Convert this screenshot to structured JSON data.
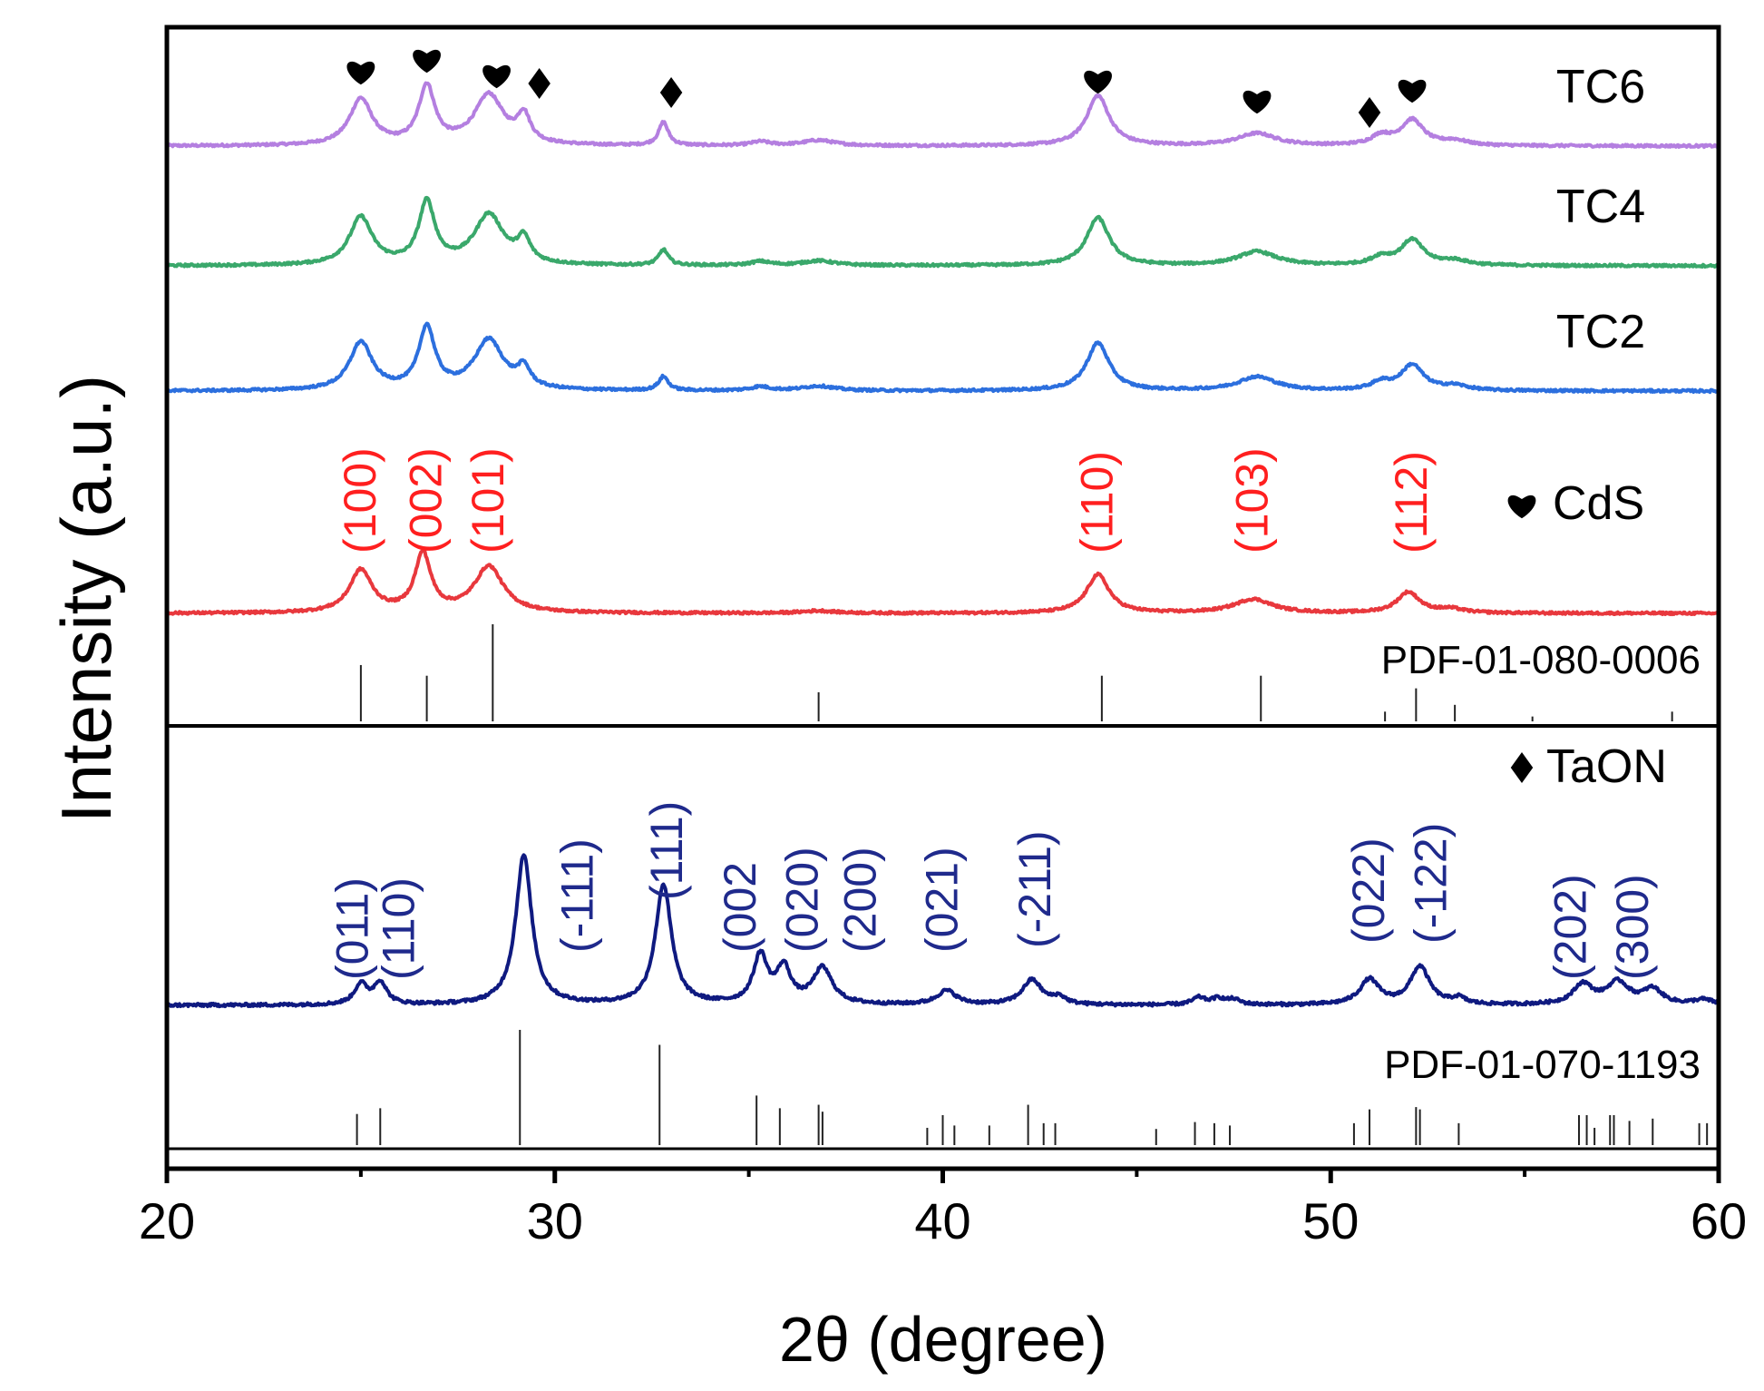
{
  "chart_data": {
    "type": "line",
    "xlabel": "2θ (degree)",
    "ylabel": "Intensity (a.u.)",
    "xlim": [
      20,
      60
    ],
    "xticks": [
      20,
      30,
      40,
      50,
      60
    ],
    "colors": {
      "TC6": "#b47fe0",
      "TC4": "#3aa86b",
      "TC2": "#2c6fde",
      "CdS": "#e8383d",
      "TaON": "#0f1a80",
      "ref": "#222222",
      "cds_labels": "#ff1f1f",
      "taon_labels": "#1f2a8c"
    },
    "series": [
      {
        "name": "TC6",
        "peaks": [
          [
            25.0,
            0.6,
            0.35
          ],
          [
            26.7,
            0.75,
            0.25
          ],
          [
            28.3,
            0.65,
            0.45
          ],
          [
            29.2,
            0.35,
            0.2
          ],
          [
            32.8,
            0.3,
            0.15
          ],
          [
            35.3,
            0.05,
            0.3
          ],
          [
            36.8,
            0.07,
            0.5
          ],
          [
            44.0,
            0.65,
            0.35
          ],
          [
            48.1,
            0.16,
            0.6
          ],
          [
            51.3,
            0.12,
            0.3
          ],
          [
            52.1,
            0.33,
            0.35
          ],
          [
            53.2,
            0.06,
            0.4
          ]
        ]
      },
      {
        "name": "TC4",
        "peaks": [
          [
            25.0,
            0.62,
            0.35
          ],
          [
            26.7,
            0.8,
            0.25
          ],
          [
            28.3,
            0.65,
            0.45
          ],
          [
            29.2,
            0.3,
            0.2
          ],
          [
            32.8,
            0.2,
            0.15
          ],
          [
            35.3,
            0.05,
            0.3
          ],
          [
            36.8,
            0.06,
            0.5
          ],
          [
            44.0,
            0.62,
            0.35
          ],
          [
            48.1,
            0.18,
            0.6
          ],
          [
            51.3,
            0.1,
            0.3
          ],
          [
            52.1,
            0.33,
            0.35
          ],
          [
            53.2,
            0.06,
            0.4
          ]
        ]
      },
      {
        "name": "TC2",
        "peaks": [
          [
            25.0,
            0.62,
            0.35
          ],
          [
            26.7,
            0.8,
            0.25
          ],
          [
            28.3,
            0.65,
            0.45
          ],
          [
            29.2,
            0.25,
            0.2
          ],
          [
            32.8,
            0.18,
            0.15
          ],
          [
            35.3,
            0.05,
            0.3
          ],
          [
            36.8,
            0.06,
            0.5
          ],
          [
            44.0,
            0.62,
            0.35
          ],
          [
            48.1,
            0.18,
            0.6
          ],
          [
            51.3,
            0.1,
            0.3
          ],
          [
            52.1,
            0.33,
            0.35
          ],
          [
            53.2,
            0.06,
            0.4
          ]
        ]
      },
      {
        "name": "CdS",
        "peaks": [
          [
            25.0,
            0.55,
            0.35
          ],
          [
            26.6,
            0.75,
            0.25
          ],
          [
            28.3,
            0.6,
            0.45
          ],
          [
            36.8,
            0.03,
            0.5
          ],
          [
            44.0,
            0.5,
            0.35
          ],
          [
            48.0,
            0.18,
            0.6
          ],
          [
            52.0,
            0.27,
            0.35
          ],
          [
            53.1,
            0.05,
            0.4
          ]
        ]
      },
      {
        "name": "TaON",
        "peaks": [
          [
            25.0,
            0.2,
            0.2
          ],
          [
            25.5,
            0.22,
            0.2
          ],
          [
            29.2,
            1.5,
            0.25
          ],
          [
            32.8,
            1.2,
            0.25
          ],
          [
            35.3,
            0.48,
            0.22
          ],
          [
            35.9,
            0.35,
            0.22
          ],
          [
            36.9,
            0.36,
            0.3
          ],
          [
            40.1,
            0.14,
            0.3
          ],
          [
            42.3,
            0.25,
            0.3
          ],
          [
            43.0,
            0.07,
            0.2
          ],
          [
            46.6,
            0.07,
            0.2
          ],
          [
            47.1,
            0.06,
            0.2
          ],
          [
            47.5,
            0.05,
            0.2
          ],
          [
            51.0,
            0.25,
            0.3
          ],
          [
            52.3,
            0.38,
            0.3
          ],
          [
            53.3,
            0.06,
            0.2
          ],
          [
            56.5,
            0.2,
            0.3
          ],
          [
            57.4,
            0.22,
            0.35
          ],
          [
            58.3,
            0.15,
            0.3
          ],
          [
            59.6,
            0.05,
            0.3
          ]
        ]
      }
    ],
    "reference_cds": {
      "label": "PDF-01-080-0006",
      "lines": [
        [
          25.0,
          0.58
        ],
        [
          26.7,
          0.47
        ],
        [
          28.4,
          1.0
        ],
        [
          36.8,
          0.3
        ],
        [
          44.1,
          0.47
        ],
        [
          48.2,
          0.47
        ],
        [
          51.4,
          0.1
        ],
        [
          52.2,
          0.34
        ],
        [
          53.2,
          0.17
        ],
        [
          55.2,
          0.05
        ],
        [
          58.8,
          0.1
        ]
      ]
    },
    "reference_taon": {
      "label": "PDF-01-070-1193",
      "lines": [
        [
          24.9,
          0.27
        ],
        [
          25.5,
          0.32
        ],
        [
          29.1,
          1.0
        ],
        [
          32.7,
          0.87
        ],
        [
          35.2,
          0.43
        ],
        [
          35.8,
          0.32
        ],
        [
          36.8,
          0.35
        ],
        [
          36.9,
          0.29
        ],
        [
          39.6,
          0.15
        ],
        [
          40.0,
          0.26
        ],
        [
          40.3,
          0.17
        ],
        [
          41.2,
          0.17
        ],
        [
          42.2,
          0.35
        ],
        [
          42.6,
          0.19
        ],
        [
          42.9,
          0.19
        ],
        [
          45.5,
          0.14
        ],
        [
          46.5,
          0.2
        ],
        [
          47.0,
          0.19
        ],
        [
          47.4,
          0.17
        ],
        [
          50.6,
          0.19
        ],
        [
          51.0,
          0.31
        ],
        [
          52.2,
          0.33
        ],
        [
          52.3,
          0.31
        ],
        [
          53.3,
          0.19
        ],
        [
          56.4,
          0.26
        ],
        [
          56.6,
          0.26
        ],
        [
          56.8,
          0.15
        ],
        [
          57.2,
          0.26
        ],
        [
          57.3,
          0.26
        ],
        [
          57.7,
          0.21
        ],
        [
          58.3,
          0.23
        ],
        [
          59.5,
          0.19
        ],
        [
          59.7,
          0.19
        ]
      ]
    },
    "legend": [
      {
        "marker": "♥",
        "text": "CdS"
      },
      {
        "marker": "♦",
        "text": "TaON"
      }
    ],
    "cds_hkl": [
      {
        "text": "(100)",
        "x": 25.0
      },
      {
        "text": "(002)",
        "x": 26.7
      },
      {
        "text": "(101)",
        "x": 28.3
      },
      {
        "text": "(110)",
        "x": 44.0
      },
      {
        "text": "(103)",
        "x": 48.0
      },
      {
        "text": "(112)",
        "x": 52.1
      }
    ],
    "taon_hkl": [
      {
        "text": "(011)",
        "x": 24.8
      },
      {
        "text": "(110)",
        "x": 26.0
      },
      {
        "text": "(-111)",
        "x": 30.6
      },
      {
        "text": "(111)",
        "x": 32.9
      },
      {
        "text": "(002",
        "x": 34.8
      },
      {
        "text": "(020)",
        "x": 36.4
      },
      {
        "text": "(200)",
        "x": 37.9
      },
      {
        "text": "(021)",
        "x": 40.0
      },
      {
        "text": "(-211)",
        "x": 42.4
      },
      {
        "text": "(022)",
        "x": 51.0
      },
      {
        "text": "(-122)",
        "x": 52.6
      },
      {
        "text": "(202)",
        "x": 56.2
      },
      {
        "text": "(300)",
        "x": 57.8
      }
    ],
    "markers_tc6": [
      {
        "type": "heart",
        "x": 25.0
      },
      {
        "type": "heart",
        "x": 26.7
      },
      {
        "type": "heart",
        "x": 28.5
      },
      {
        "type": "diamond",
        "x": 29.6
      },
      {
        "type": "diamond",
        "x": 33.0
      },
      {
        "type": "heart",
        "x": 44.0
      },
      {
        "type": "heart",
        "x": 48.1
      },
      {
        "type": "diamond",
        "x": 51.0
      },
      {
        "type": "heart",
        "x": 52.1
      }
    ]
  }
}
